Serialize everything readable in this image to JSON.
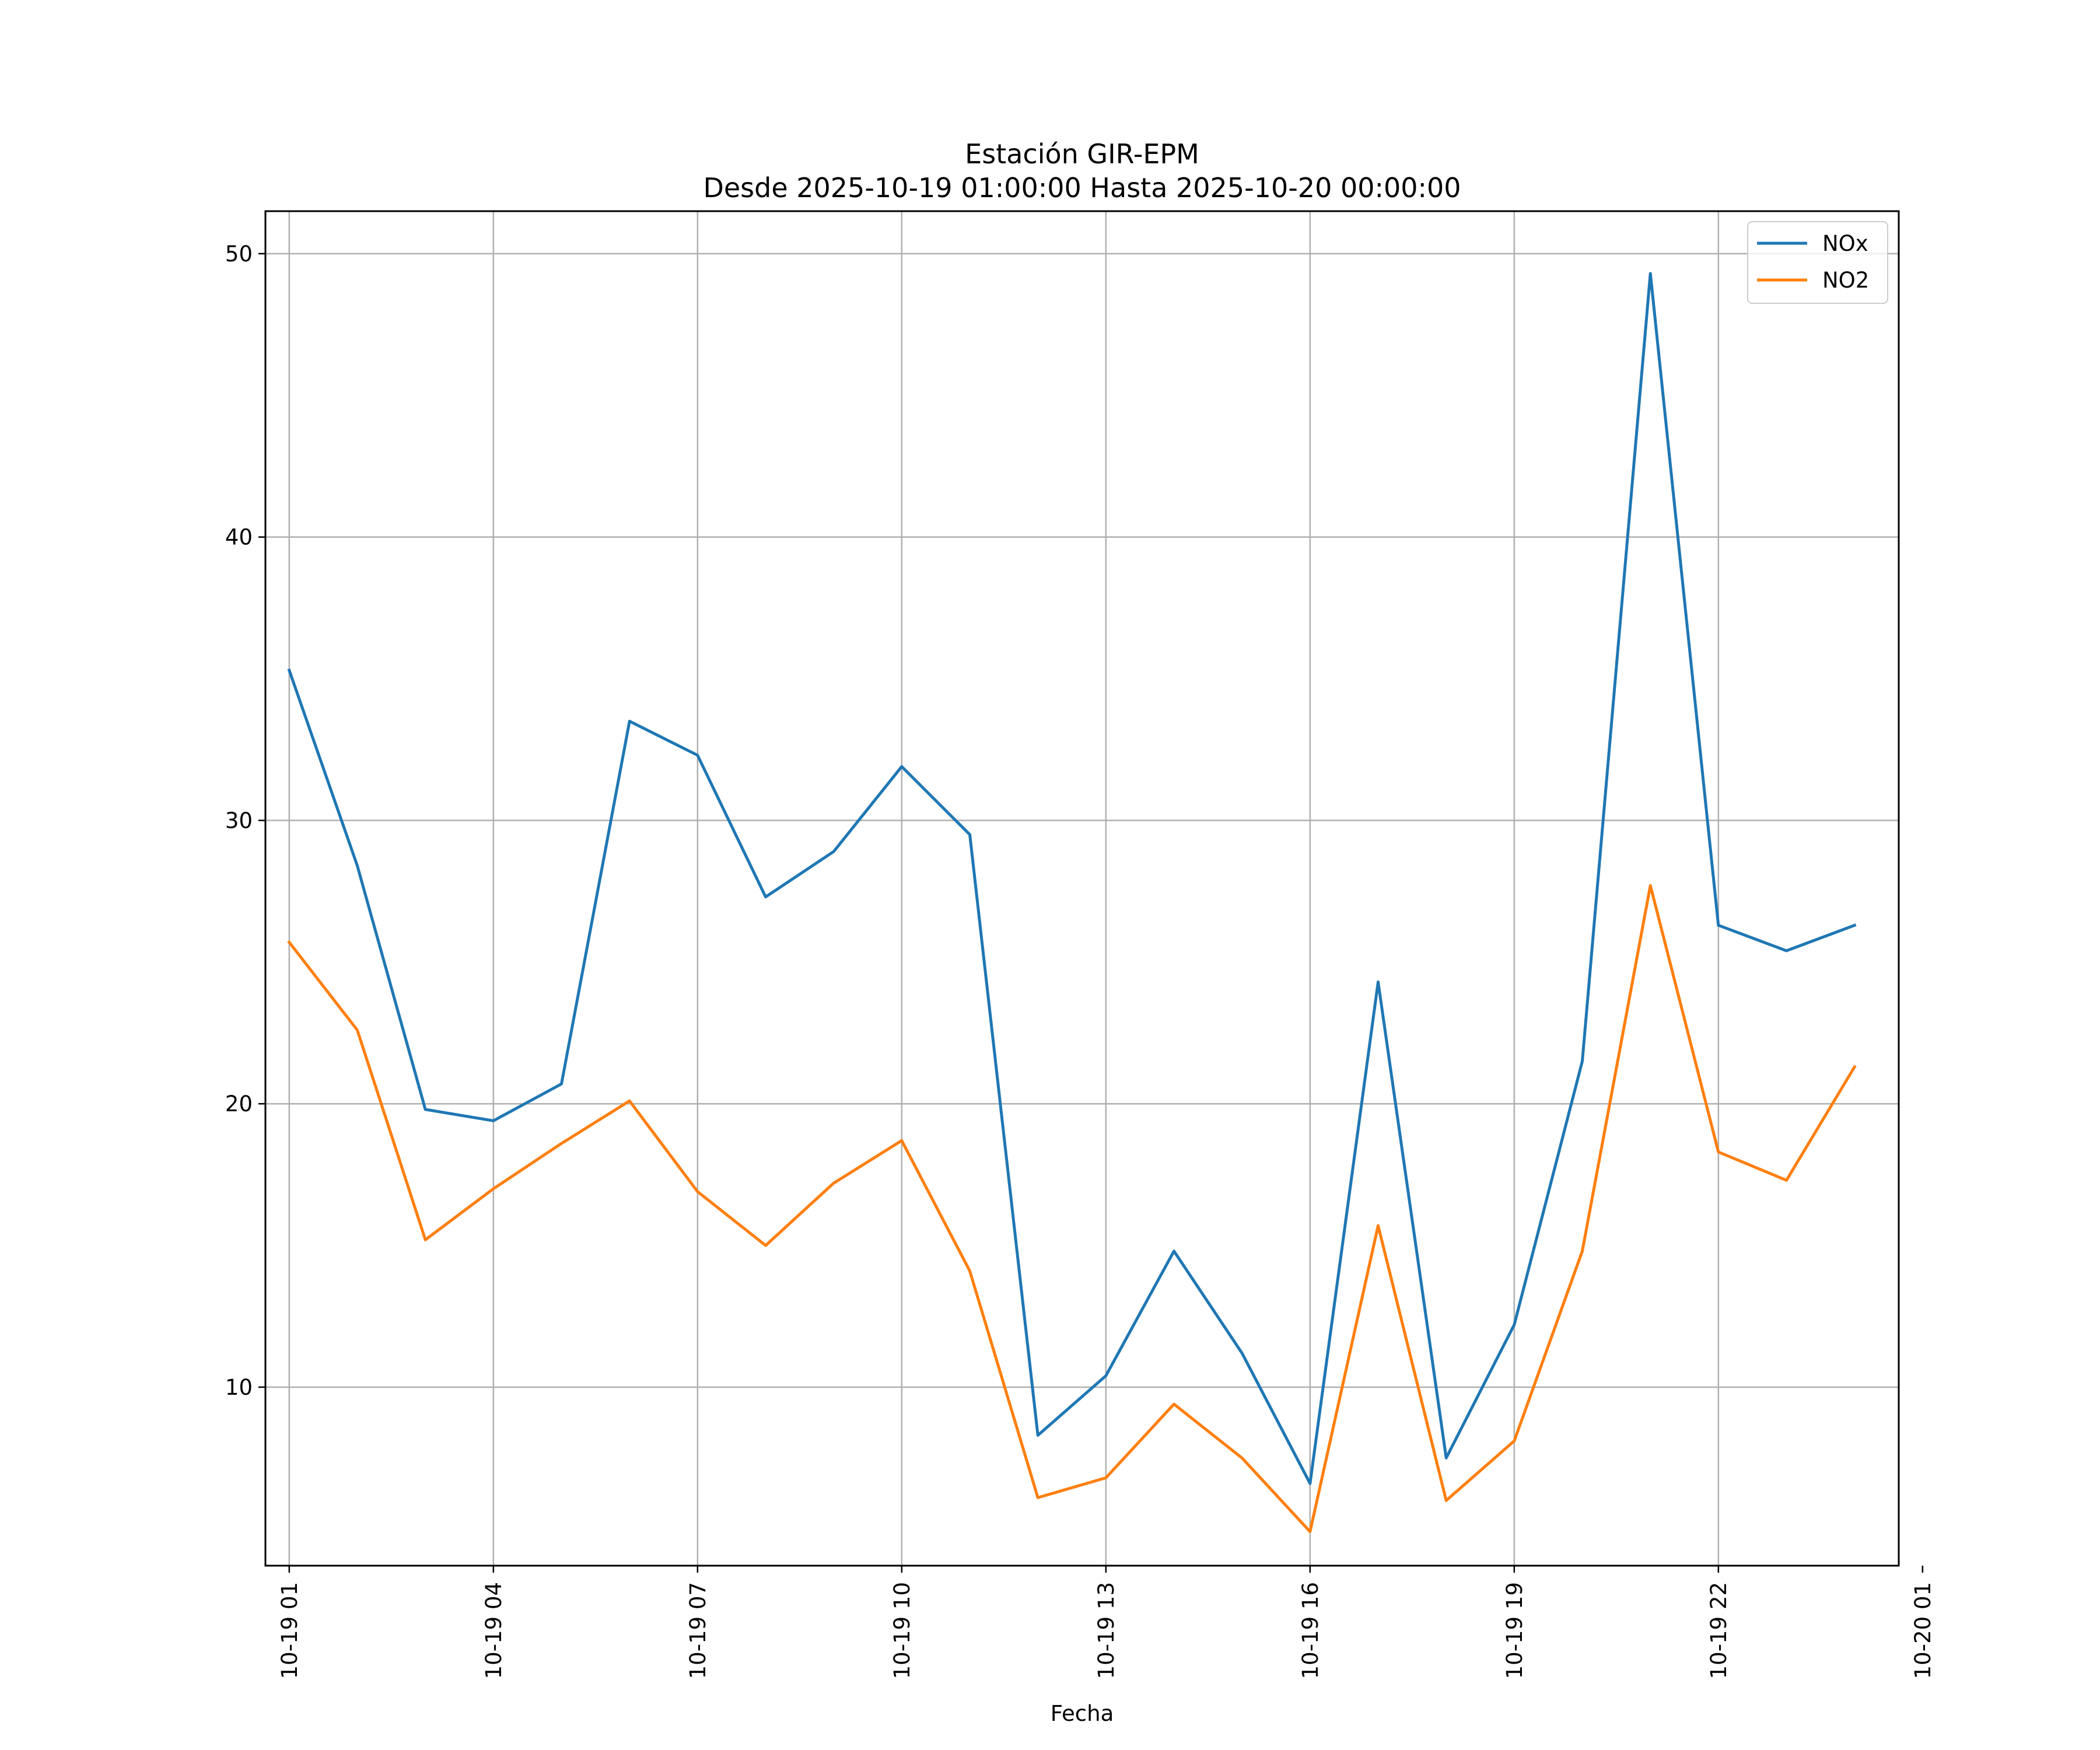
{
  "chart_data": {
    "type": "line",
    "title_line1": "Estación GIR-EPM",
    "title_line2": "Desde 2025-10-19 01:00:00 Hasta 2025-10-20 00:00:00",
    "xlabel": "Fecha",
    "ylabel": "",
    "grid": true,
    "legend_position": "top-right",
    "xlim": [
      0.65,
      24.65
    ],
    "ylim": [
      3.7,
      51.5
    ],
    "x": [
      1,
      2,
      3,
      4,
      5,
      6,
      7,
      8,
      9,
      10,
      11,
      12,
      13,
      14,
      15,
      16,
      17,
      18,
      19,
      20,
      21,
      22,
      23,
      24
    ],
    "x_ticks": [
      {
        "x": 1,
        "label": "10-19 01"
      },
      {
        "x": 4,
        "label": "10-19 04"
      },
      {
        "x": 7,
        "label": "10-19 07"
      },
      {
        "x": 10,
        "label": "10-19 10"
      },
      {
        "x": 13,
        "label": "10-19 13"
      },
      {
        "x": 16,
        "label": "10-19 16"
      },
      {
        "x": 19,
        "label": "10-19 19"
      },
      {
        "x": 22,
        "label": "10-19 22"
      },
      {
        "x": 25,
        "label": "10-20 01"
      }
    ],
    "y_ticks": [
      10,
      20,
      30,
      40,
      50
    ],
    "series": [
      {
        "name": "NOx",
        "color": "#1f77b4",
        "values": [
          35.3,
          28.4,
          19.8,
          19.4,
          20.7,
          33.5,
          32.3,
          27.3,
          28.9,
          31.9,
          29.5,
          8.3,
          10.4,
          14.8,
          11.2,
          6.6,
          24.3,
          7.5,
          12.2,
          21.5,
          49.3,
          26.3,
          25.4,
          26.3
        ]
      },
      {
        "name": "NO2",
        "color": "#ff7f0e",
        "values": [
          25.7,
          22.6,
          15.2,
          17.0,
          18.6,
          20.1,
          16.9,
          15.0,
          17.2,
          18.7,
          14.1,
          6.1,
          6.8,
          9.4,
          7.5,
          4.9,
          15.7,
          6.0,
          8.1,
          14.8,
          27.7,
          18.3,
          17.3,
          21.3
        ]
      }
    ]
  }
}
